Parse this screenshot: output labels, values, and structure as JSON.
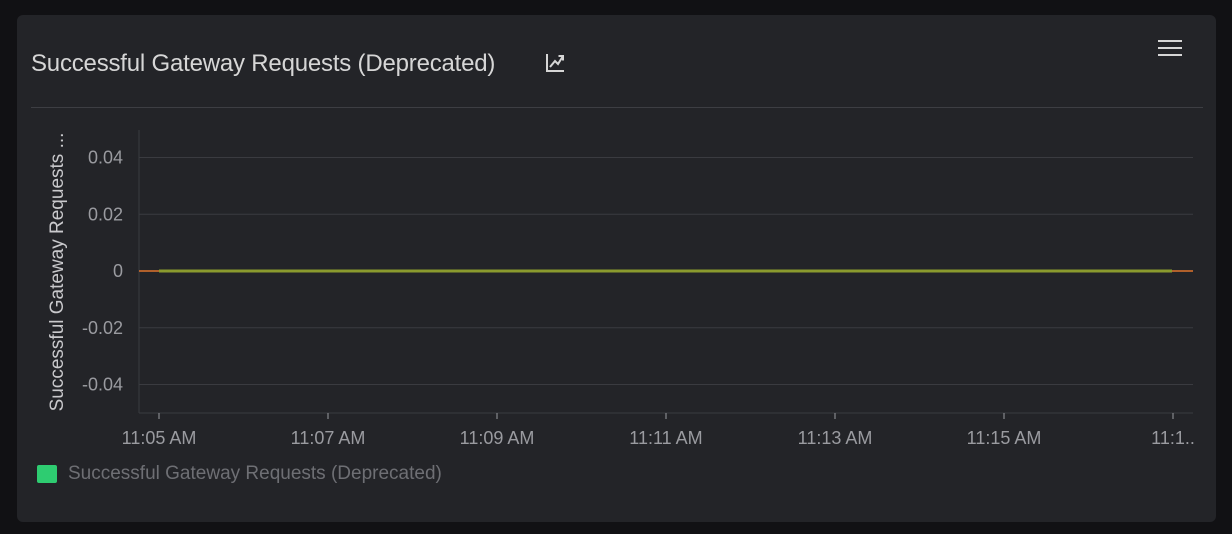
{
  "panel": {
    "title": "Successful Gateway Requests (Deprecated)",
    "title_icon": "trend-chart-icon",
    "menu_icon": "hamburger-menu-icon"
  },
  "legend": {
    "label": "Successful Gateway Requests (Deprecated)",
    "color": "#2ecc71"
  },
  "colors": {
    "background": "#111114",
    "card": "#232428",
    "grid": "#3a3b40",
    "axis_text": "#9a9ba0",
    "series_line": "#8a9a2e",
    "zero_line": "#e0742c"
  },
  "chart_data": {
    "type": "line",
    "title": "",
    "ylabel": "Successful Gateway Requests ...",
    "xlabel": "",
    "ylim": [
      -0.05,
      0.05
    ],
    "y_ticks": [
      "0.04",
      "0.02",
      "0",
      "-0.02",
      "-0.04"
    ],
    "y_tick_values": [
      0.04,
      0.02,
      0,
      -0.02,
      -0.04
    ],
    "x_ticks": [
      "11:05 AM",
      "11:07 AM",
      "11:09 AM",
      "11:11 AM",
      "11:13 AM",
      "11:15 AM",
      "11:1.."
    ],
    "grid": true,
    "legend_position": "bottom-left",
    "series": [
      {
        "name": "Successful Gateway Requests (Deprecated)",
        "x": [
          "11:05 AM",
          "11:07 AM",
          "11:09 AM",
          "11:11 AM",
          "11:13 AM",
          "11:15 AM",
          "11:17 AM"
        ],
        "values": [
          0,
          0,
          0,
          0,
          0,
          0,
          0
        ]
      }
    ]
  }
}
